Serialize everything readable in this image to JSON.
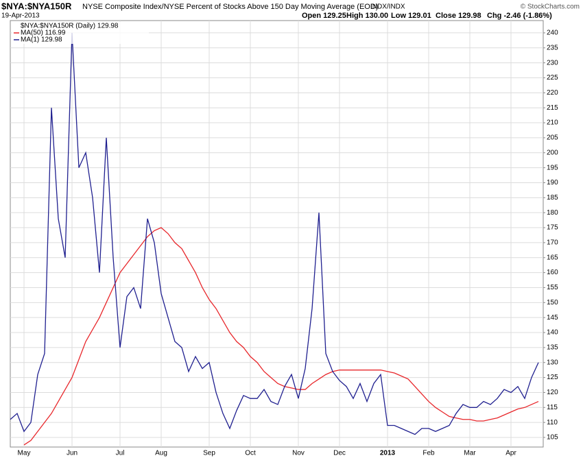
{
  "chart_data": {
    "type": "line",
    "title": "$NYA:$NYA150R",
    "subtitle": "NYSE Composite Index/NYSE Percent of Stocks Above 150 Day Moving Average (EOD)",
    "exchange": "INDX/INDX",
    "date": "19-Apr-2013",
    "quote": [
      "Open 129.25",
      "High 130.00",
      "Low 129.01",
      "Close 129.98",
      "Chg -2.46 (-1.86%)"
    ],
    "credit": "© StockCharts.com",
    "price_label": "$NYA:$NYA150R (Daily) 129.98",
    "categories": [
      null,
      null,
      "May",
      null,
      null,
      null,
      null,
      null,
      null,
      "Jun",
      null,
      null,
      null,
      null,
      null,
      null,
      "Jul",
      null,
      null,
      null,
      null,
      null,
      "Aug",
      null,
      null,
      null,
      null,
      null,
      null,
      "Sep",
      null,
      null,
      null,
      null,
      null,
      "Oct",
      null,
      null,
      null,
      null,
      null,
      null,
      "Nov",
      null,
      null,
      null,
      null,
      null,
      "Dec",
      null,
      null,
      null,
      null,
      null,
      null,
      "2013",
      null,
      null,
      null,
      null,
      null,
      "Feb",
      null,
      null,
      null,
      null,
      null,
      "Mar",
      null,
      null,
      null,
      null,
      null,
      "Apr",
      null,
      null,
      null,
      null
    ],
    "series": [
      {
        "name": "MA(50) 116.99",
        "color": "#e8262a",
        "values": [
          null,
          null,
          102.5,
          104,
          107,
          110,
          113,
          117,
          121,
          125,
          131,
          137,
          141,
          145,
          150,
          155,
          160,
          163,
          166,
          169,
          172,
          174,
          175,
          173,
          170,
          168,
          164,
          160,
          155,
          151,
          148,
          144,
          140,
          137,
          135,
          132,
          130,
          127,
          125,
          123,
          122,
          121.5,
          121,
          121,
          123,
          124.5,
          126,
          127,
          127.5,
          127.5,
          127.5,
          127.5,
          127.5,
          127.5,
          127.5,
          127,
          126.5,
          125.5,
          124.5,
          122,
          119.5,
          117,
          115,
          113.5,
          112,
          111.5,
          111,
          111,
          110.5,
          110.5,
          111,
          111.5,
          112.5,
          113.5,
          114.5,
          115,
          116,
          117
        ]
      },
      {
        "name": "MA(1) 129.98",
        "color": "#1f1f8f",
        "values": [
          111,
          113,
          107,
          110,
          126,
          133,
          215,
          178,
          165,
          240,
          195,
          200,
          185,
          160,
          205,
          165,
          135,
          152,
          155,
          148,
          178,
          170,
          153,
          145,
          137,
          135,
          127,
          132,
          128,
          130,
          120,
          113,
          108,
          114,
          119,
          118,
          118,
          121,
          117,
          116,
          122,
          126,
          118,
          128,
          148,
          180,
          133,
          127,
          124,
          122,
          118,
          123,
          117,
          123,
          126,
          109,
          109,
          108,
          107,
          106,
          108,
          108,
          107,
          108,
          109,
          113,
          116,
          115,
          115,
          117,
          116,
          118,
          121,
          120,
          122,
          118,
          125,
          130
        ]
      }
    ],
    "ylim": [
      101.8,
      244.1
    ],
    "yticks": [
      105,
      110,
      115,
      120,
      125,
      130,
      135,
      140,
      145,
      150,
      155,
      160,
      165,
      170,
      175,
      180,
      185,
      190,
      195,
      200,
      205,
      210,
      215,
      220,
      225,
      230,
      235,
      240
    ],
    "grid": true
  }
}
